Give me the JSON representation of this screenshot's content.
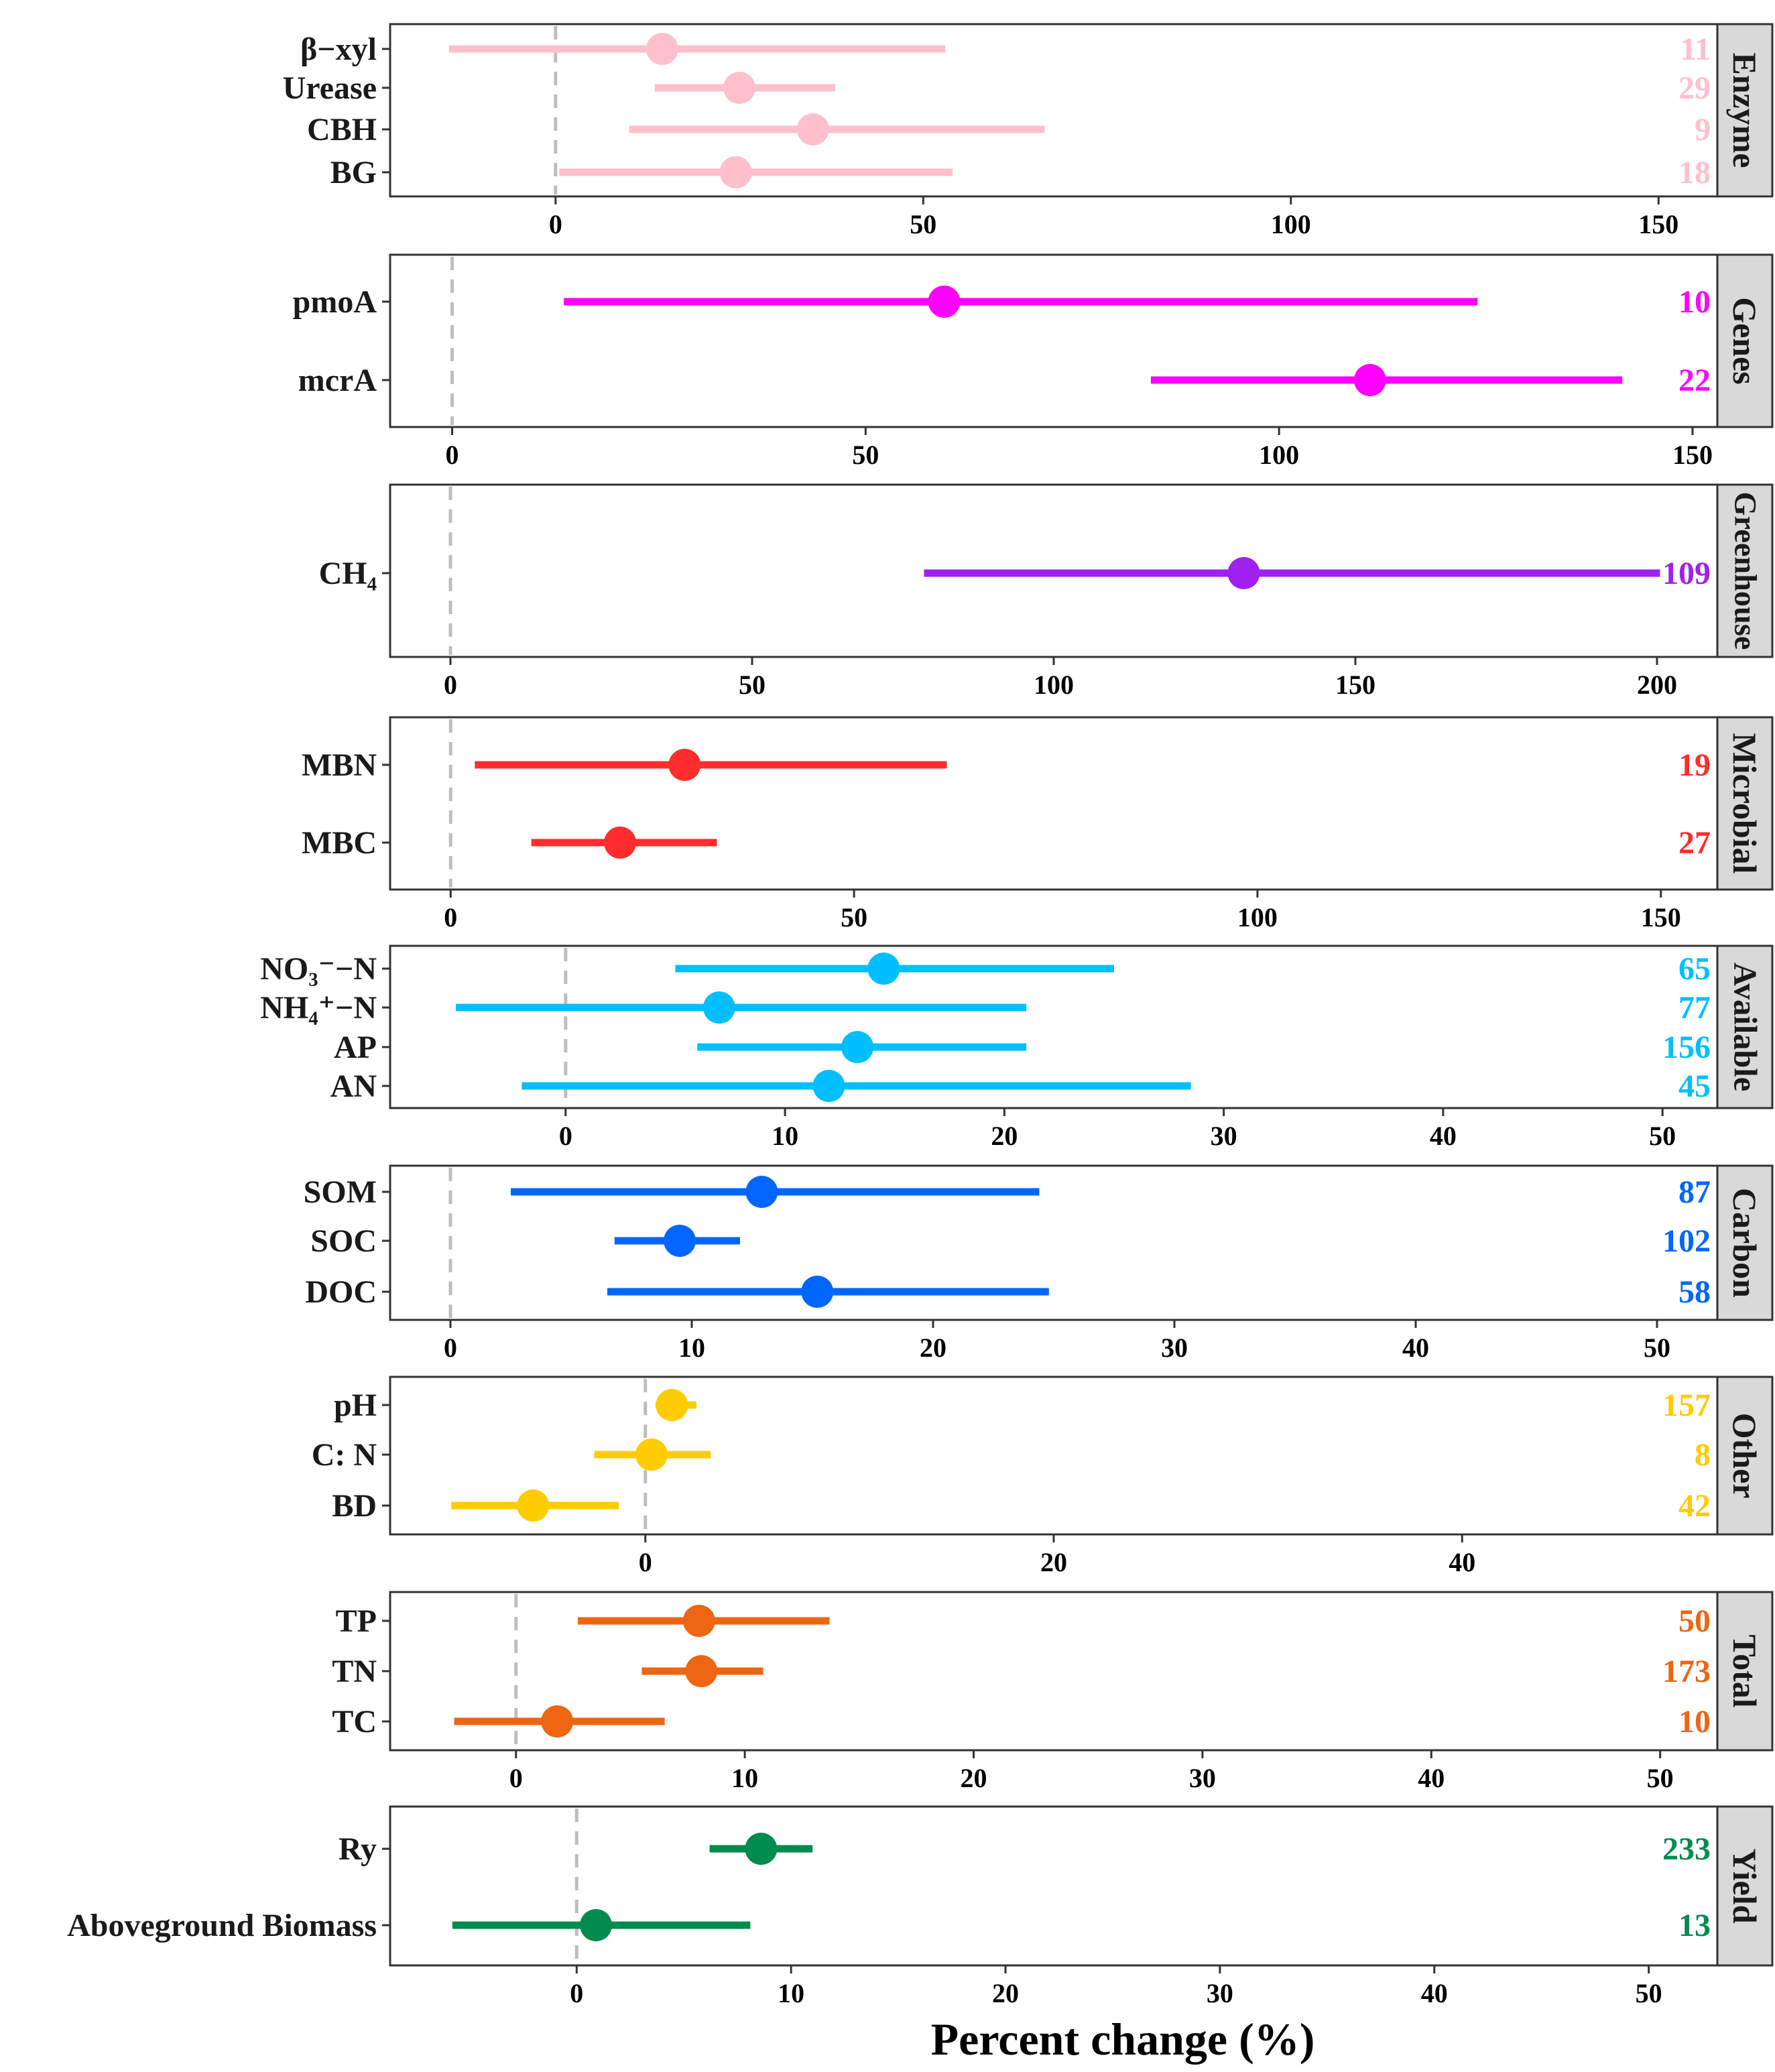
{
  "chart_data": {
    "type": "forest",
    "xlabel": "Percent change (%)",
    "facets": [
      {
        "strip": "Enzyme",
        "color": "#FFC0CB",
        "xlim": [
          -22.5,
          158
        ],
        "ticks": [
          0,
          50,
          100,
          150
        ],
        "rows": [
          {
            "label": "β−xyl",
            "mean": 14.5,
            "lo": -14.5,
            "hi": 53,
            "n": "11"
          },
          {
            "label": "Urease",
            "mean": 25,
            "lo": 13.5,
            "hi": 38,
            "n": "29"
          },
          {
            "label": "CBH",
            "mean": 35,
            "lo": 10,
            "hi": 66.5,
            "n": "9"
          },
          {
            "label": "BG",
            "mean": 24.5,
            "lo": 0.5,
            "hi": 54,
            "n": "18"
          }
        ]
      },
      {
        "strip": "Genes",
        "color": "#FF00FF",
        "xlim": [
          -7.5,
          153
        ],
        "ticks": [
          0,
          50,
          100,
          150
        ],
        "rows": [
          {
            "label": "pmoA",
            "mean": 59.5,
            "lo": 13.5,
            "hi": 124,
            "n": "10"
          },
          {
            "label": "mcrA",
            "mean": 111,
            "lo": 84.5,
            "hi": 141.5,
            "n": "22"
          }
        ]
      },
      {
        "strip": "Greenhouse",
        "color": "#A020F0",
        "xlim": [
          -10,
          210
        ],
        "ticks": [
          0,
          50,
          100,
          150,
          200
        ],
        "rows": [
          {
            "label": "CH₄",
            "mean": 131.5,
            "lo": 78.5,
            "hi": 200.5,
            "n": "109"
          }
        ]
      },
      {
        "strip": "Microbial",
        "color": "#FF2D2D",
        "xlim": [
          -7.5,
          157
        ],
        "ticks": [
          0,
          50,
          100,
          150
        ],
        "rows": [
          {
            "label": "MBN",
            "mean": 29,
            "lo": 3,
            "hi": 61.5,
            "n": "19"
          },
          {
            "label": "MBC",
            "mean": 21,
            "lo": 10,
            "hi": 33,
            "n": "27"
          }
        ]
      },
      {
        "strip": "Available",
        "color": "#00BFFF",
        "xlim": [
          -8,
          52.5
        ],
        "ticks": [
          0,
          10,
          20,
          30,
          40,
          50
        ],
        "rows": [
          {
            "label": "NO₃⁻−N",
            "mean": 14.5,
            "lo": 5,
            "hi": 25,
            "n": "65"
          },
          {
            "label": "NH₄⁺−N",
            "mean": 7,
            "lo": -5,
            "hi": 21,
            "n": "77"
          },
          {
            "label": "AP",
            "mean": 13.3,
            "lo": 6,
            "hi": 21,
            "n": "156"
          },
          {
            "label": "AN",
            "mean": 12,
            "lo": -2,
            "hi": 28.5,
            "n": "45"
          }
        ]
      },
      {
        "strip": "Carbon",
        "color": "#0066FF",
        "xlim": [
          -2.5,
          52.5
        ],
        "ticks": [
          0,
          10,
          20,
          30,
          40,
          50
        ],
        "rows": [
          {
            "label": "SOM",
            "mean": 12.9,
            "lo": 2.5,
            "hi": 24.4,
            "n": "87"
          },
          {
            "label": "SOC",
            "mean": 9.5,
            "lo": 6.8,
            "hi": 12,
            "n": "102"
          },
          {
            "label": "DOC",
            "mean": 15.2,
            "lo": 6.5,
            "hi": 24.8,
            "n": "58"
          }
        ]
      },
      {
        "strip": "Other",
        "color": "#FFCC00",
        "xlim": [
          -12.5,
          52.5
        ],
        "ticks": [
          0,
          20,
          40
        ],
        "rows": [
          {
            "label": "pH",
            "mean": 1.3,
            "lo": 0.5,
            "hi": 2.5,
            "n": "157"
          },
          {
            "label": "C: N",
            "mean": 0.3,
            "lo": -2.5,
            "hi": 3.2,
            "n": "8"
          },
          {
            "label": "BD",
            "mean": -5.5,
            "lo": -9.5,
            "hi": -1.3,
            "n": "42"
          }
        ]
      },
      {
        "strip": "Total",
        "color": "#EE6611",
        "xlim": [
          -5.5,
          52.5
        ],
        "ticks": [
          0,
          10,
          20,
          30,
          40,
          50
        ],
        "rows": [
          {
            "label": "TP",
            "mean": 8,
            "lo": 2.7,
            "hi": 13.7,
            "n": "50"
          },
          {
            "label": "TN",
            "mean": 8.1,
            "lo": 5.5,
            "hi": 10.8,
            "n": "173"
          },
          {
            "label": "TC",
            "mean": 1.8,
            "lo": -2.7,
            "hi": 6.5,
            "n": "10"
          }
        ]
      },
      {
        "strip": "Yield",
        "color": "#008B4F",
        "xlim": [
          -8.7,
          53.2
        ],
        "ticks": [
          0,
          10,
          20,
          30,
          40,
          50
        ],
        "rows": [
          {
            "label": "Ry",
            "mean": 8.6,
            "lo": 6.2,
            "hi": 11,
            "n": "233"
          },
          {
            "label": "Aboveground Biomass",
            "mean": 0.9,
            "lo": -5.8,
            "hi": 8.1,
            "n": "13"
          }
        ]
      }
    ]
  }
}
